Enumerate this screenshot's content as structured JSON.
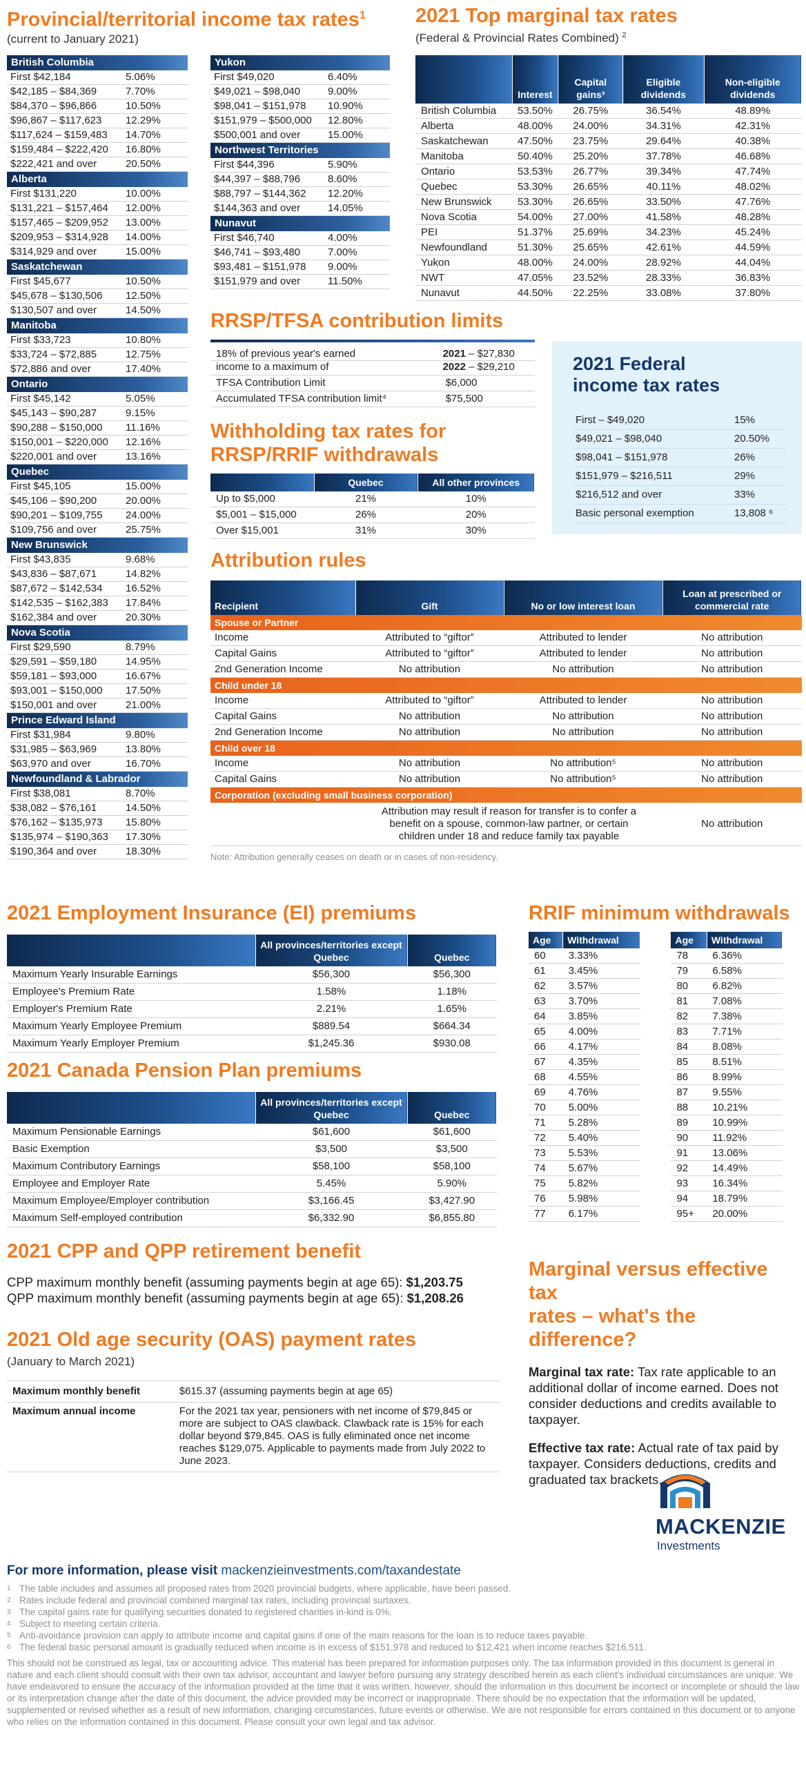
{
  "prov_section": {
    "title": "Provincial/territorial income tax rates",
    "title_sup": "1",
    "subtitle": "(current to January 2021)"
  },
  "prov_left": [
    {
      "name": "British Columbia",
      "rows": [
        [
          "First $42,184",
          "5.06%"
        ],
        [
          "$42,185 – $84,369",
          "7.70%"
        ],
        [
          "$84,370 – $96,866",
          "10.50%"
        ],
        [
          "$96,867 – $117,623",
          "12.29%"
        ],
        [
          "$117,624 – $159,483",
          "14.70%"
        ],
        [
          "$159,484 – $222,420",
          "16.80%"
        ],
        [
          "$222,421 and over",
          "20.50%"
        ]
      ]
    },
    {
      "name": "Alberta",
      "rows": [
        [
          "First $131,220",
          "10.00%"
        ],
        [
          "$131,221 – $157,464",
          "12.00%"
        ],
        [
          "$157,465 – $209,952",
          "13.00%"
        ],
        [
          "$209,953 – $314,928",
          "14.00%"
        ],
        [
          "$314,929 and over",
          "15.00%"
        ]
      ]
    },
    {
      "name": "Saskatchewan",
      "rows": [
        [
          "First $45,677",
          "10.50%"
        ],
        [
          "$45,678 – $130,506",
          "12.50%"
        ],
        [
          "$130,507 and over",
          "14.50%"
        ]
      ]
    },
    {
      "name": "Manitoba",
      "rows": [
        [
          "First $33,723",
          "10.80%"
        ],
        [
          "$33,724 – $72,885",
          "12.75%"
        ],
        [
          "$72,886 and over",
          "17.40%"
        ]
      ]
    },
    {
      "name": "Ontario",
      "rows": [
        [
          "First $45,142",
          "5.05%"
        ],
        [
          "$45,143 – $90,287",
          "9.15%"
        ],
        [
          "$90,288 – $150,000",
          "11.16%"
        ],
        [
          "$150,001 – $220,000",
          "12.16%"
        ],
        [
          "$220,001 and over",
          "13.16%"
        ]
      ]
    },
    {
      "name": "Quebec",
      "rows": [
        [
          "First $45,105",
          "15.00%"
        ],
        [
          "$45,106 – $90,200",
          "20.00%"
        ],
        [
          "$90,201 – $109,755",
          "24.00%"
        ],
        [
          "$109,756 and over",
          "25.75%"
        ]
      ]
    },
    {
      "name": "New Brunswick",
      "rows": [
        [
          "First $43,835",
          "9.68%"
        ],
        [
          "$43,836 – $87,671",
          "14.82%"
        ],
        [
          "$87,672 – $142,534",
          "16.52%"
        ],
        [
          "$142,535 – $162,383",
          "17.84%"
        ],
        [
          "$162,384 and over",
          "20.30%"
        ]
      ]
    },
    {
      "name": "Nova Scotia",
      "rows": [
        [
          "First $29,590",
          "8.79%"
        ],
        [
          "$29,591 – $59,180",
          "14.95%"
        ],
        [
          "$59,181 – $93,000",
          "16.67%"
        ],
        [
          "$93,001 – $150,000",
          "17.50%"
        ],
        [
          "$150,001 and over",
          "21.00%"
        ]
      ]
    },
    {
      "name": "Prince Edward Island",
      "rows": [
        [
          "First $31,984",
          "9.80%"
        ],
        [
          "$31,985 – $63,969",
          "13.80%"
        ],
        [
          "$63,970 and over",
          "16.70%"
        ]
      ]
    },
    {
      "name": "Newfoundland & Labrador",
      "rows": [
        [
          "First $38,081",
          "8.70%"
        ],
        [
          "$38,082 – $76,161",
          "14.50%"
        ],
        [
          "$76,162 – $135,973",
          "15.80%"
        ],
        [
          "$135,974 – $190,363",
          "17.30%"
        ],
        [
          "$190,364 and over",
          "18.30%"
        ]
      ]
    }
  ],
  "prov_right": [
    {
      "name": "Yukon",
      "rows": [
        [
          "First $49,020",
          "6.40%"
        ],
        [
          "$49,021 – $98,040",
          "9.00%"
        ],
        [
          "$98,041 – $151,978",
          "10.90%"
        ],
        [
          "$151,979 – $500,000",
          "12.80%"
        ],
        [
          "$500,001 and over",
          "15.00%"
        ]
      ]
    },
    {
      "name": "Northwest Territories",
      "rows": [
        [
          "First $44,396",
          "5.90%"
        ],
        [
          "$44,397 – $88,796",
          "8.60%"
        ],
        [
          "$88,797 – $144,362",
          "12.20%"
        ],
        [
          "$144,363 and over",
          "14.05%"
        ]
      ]
    },
    {
      "name": "Nunavut",
      "rows": [
        [
          "First $46,740",
          "4.00%"
        ],
        [
          "$46,741 – $93,480",
          "7.00%"
        ],
        [
          "$93,481 – $151,978",
          "9.00%"
        ],
        [
          "$151,979 and over",
          "11.50%"
        ]
      ]
    }
  ],
  "marginal": {
    "title": "2021 Top marginal tax rates",
    "subtitle": "(Federal & Provincial Rates Combined)",
    "subtitle_sup": "2",
    "headers": [
      "",
      "Interest",
      "Capital gains³",
      "Eligible dividends",
      "Non-eligible dividends"
    ],
    "rows": [
      [
        "British Columbia",
        "53.50%",
        "26.75%",
        "36.54%",
        "48.89%"
      ],
      [
        "Alberta",
        "48.00%",
        "24.00%",
        "34.31%",
        "42.31%"
      ],
      [
        "Saskatchewan",
        "47.50%",
        "23.75%",
        "29.64%",
        "40.38%"
      ],
      [
        "Manitoba",
        "50.40%",
        "25.20%",
        "37.78%",
        "46.68%"
      ],
      [
        "Ontario",
        "53.53%",
        "26.77%",
        "39.34%",
        "47.74%"
      ],
      [
        "Quebec",
        "53.30%",
        "26.65%",
        "40.11%",
        "48.02%"
      ],
      [
        "New Brunswick",
        "53.30%",
        "26.65%",
        "33.50%",
        "47.76%"
      ],
      [
        "Nova Scotia",
        "54.00%",
        "27.00%",
        "41.58%",
        "48.28%"
      ],
      [
        "PEI",
        "51.37%",
        "25.69%",
        "34.23%",
        "45.24%"
      ],
      [
        "Newfoundland",
        "51.30%",
        "25.65%",
        "42.61%",
        "44.59%"
      ],
      [
        "Yukon",
        "48.00%",
        "24.00%",
        "28.92%",
        "44.04%"
      ],
      [
        "NWT",
        "47.05%",
        "23.52%",
        "28.33%",
        "36.83%"
      ],
      [
        "Nunavut",
        "44.50%",
        "22.25%",
        "33.08%",
        "37.80%"
      ]
    ]
  },
  "rrsp": {
    "title": "RRSP/TFSA contribution limits",
    "line1": "18% of previous year's earned",
    "line2": "income to a maximum of",
    "y1": "2021",
    "v1": " – $27,830",
    "y2": "2022",
    "v2": " – $29,210",
    "tfsa_label": "TFSA Contribution Limit",
    "tfsa_value": "$6,000",
    "acc_label": "Accumulated TFSA contribution limit⁴",
    "acc_value": "$75,500"
  },
  "federal": {
    "title1": "2021 Federal",
    "title2": "income tax rates",
    "rows": [
      [
        "First – $49,020",
        "15%"
      ],
      [
        "$49,021 – $98,040",
        "20.50%"
      ],
      [
        "$98,041 – $151,978",
        "26%"
      ],
      [
        "$151,979 – $216,511",
        "29%"
      ],
      [
        "$216,512 and over",
        "33%"
      ],
      [
        "Basic personal exemption",
        "13,808 ⁶"
      ]
    ]
  },
  "withholding": {
    "title1": "Withholding tax rates for",
    "title2": "RRSP/RRIF withdrawals",
    "headers": [
      "",
      "Quebec",
      "All other provinces"
    ],
    "rows": [
      [
        "Up to $5,000",
        "21%",
        "10%"
      ],
      [
        "$5,001 – $15,000",
        "26%",
        "20%"
      ],
      [
        "Over $15,001",
        "31%",
        "30%"
      ]
    ]
  },
  "attribution": {
    "title": "Attribution rules",
    "headers": [
      "Recipient",
      "Gift",
      "No or low interest loan",
      "Loan at prescribed or commercial rate"
    ],
    "groups": [
      {
        "name": "Spouse or Partner",
        "rows": [
          [
            "Income",
            "Attributed to “giftor”",
            "Attributed to lender",
            "No attribution"
          ],
          [
            "Capital Gains",
            "Attributed to “giftor”",
            "Attributed to lender",
            "No attribution"
          ],
          [
            "2nd Generation Income",
            "No attribution",
            "No attribution",
            "No attribution"
          ]
        ]
      },
      {
        "name": "Child under 18",
        "rows": [
          [
            "Income",
            "Attributed to “giftor”",
            "Attributed to lender",
            "No attribution"
          ],
          [
            "Capital Gains",
            "No attribution",
            "No attribution",
            "No attribution"
          ],
          [
            "2nd Generation Income",
            "No attribution",
            "No attribution",
            "No attribution"
          ]
        ]
      },
      {
        "name": "Child over 18",
        "rows": [
          [
            "Income",
            "No attribution",
            "No attribution⁵",
            "No attribution"
          ],
          [
            "Capital Gains",
            "No attribution",
            "No attribution⁵",
            "No attribution"
          ]
        ]
      },
      {
        "name": "Corporation (excluding small business corporation)",
        "rows": []
      }
    ],
    "corp_text": "Attribution may result if reason for transfer is to confer a benefit on a spouse, common-law partner, or certain children under 18 and reduce family tax payable",
    "corp_value": "No attribution",
    "note": "Note: Attribution generally ceases on death or in cases of non-residency."
  },
  "ei": {
    "title": "2021 Employment Insurance (EI) premiums",
    "headers": [
      "",
      "All provinces/territories except Quebec",
      "Quebec"
    ],
    "rows": [
      [
        "Maximum Yearly Insurable Earnings",
        "$56,300",
        "$56,300"
      ],
      [
        "Employee's Premium Rate",
        "1.58%",
        "1.18%"
      ],
      [
        "Employer's Premium Rate",
        "2.21%",
        "1.65%"
      ],
      [
        "Maximum Yearly Employee Premium",
        "$889.54",
        "$664.34"
      ],
      [
        "Maximum Yearly Employer Premium",
        "$1,245.36",
        "$930.08"
      ]
    ]
  },
  "cpp": {
    "title": "2021 Canada Pension Plan premiums",
    "headers": [
      "",
      "All provinces/territories except Quebec",
      "Quebec"
    ],
    "rows": [
      [
        "Maximum Pensionable Earnings",
        "$61,600",
        "$61,600"
      ],
      [
        "Basic Exemption",
        "$3,500",
        "$3,500"
      ],
      [
        "Maximum Contributory Earnings",
        "$58,100",
        "$58,100"
      ],
      [
        "Employee and Employer Rate",
        "5.45%",
        "5.90%"
      ],
      [
        "Maximum Employee/Employer contribution",
        "$3,166.45",
        "$3,427.90"
      ],
      [
        "Maximum Self-employed contribution",
        "$6,332.90",
        "$6,855.80"
      ]
    ]
  },
  "rrif": {
    "title": "RRIF minimum withdrawals",
    "headers": [
      "Age",
      "Withdrawal"
    ],
    "left": [
      [
        "60",
        "3.33%"
      ],
      [
        "61",
        "3.45%"
      ],
      [
        "62",
        "3.57%"
      ],
      [
        "63",
        "3.70%"
      ],
      [
        "64",
        "3.85%"
      ],
      [
        "65",
        "4.00%"
      ],
      [
        "66",
        "4.17%"
      ],
      [
        "67",
        "4.35%"
      ],
      [
        "68",
        "4.55%"
      ],
      [
        "69",
        "4.76%"
      ],
      [
        "70",
        "5.00%"
      ],
      [
        "71",
        "5.28%"
      ],
      [
        "72",
        "5.40%"
      ],
      [
        "73",
        "5.53%"
      ],
      [
        "74",
        "5.67%"
      ],
      [
        "75",
        "5.82%"
      ],
      [
        "76",
        "5.98%"
      ],
      [
        "77",
        "6.17%"
      ]
    ],
    "right": [
      [
        "78",
        "6.36%"
      ],
      [
        "79",
        "6.58%"
      ],
      [
        "80",
        "6.82%"
      ],
      [
        "81",
        "7.08%"
      ],
      [
        "82",
        "7.38%"
      ],
      [
        "83",
        "7.71%"
      ],
      [
        "84",
        "8.08%"
      ],
      [
        "85",
        "8.51%"
      ],
      [
        "86",
        "8.99%"
      ],
      [
        "87",
        "9.55%"
      ],
      [
        "88",
        "10.21%"
      ],
      [
        "89",
        "10.99%"
      ],
      [
        "90",
        "11.92%"
      ],
      [
        "91",
        "13.06%"
      ],
      [
        "92",
        "14.49%"
      ],
      [
        "93",
        "16.34%"
      ],
      [
        "94",
        "18.79%"
      ],
      [
        "95+",
        "20.00%"
      ]
    ]
  },
  "retirement": {
    "title": "2021 CPP and QPP retirement benefit",
    "cpp_label": "CPP maximum monthly benefit (assuming payments begin at age 65): ",
    "cpp_value": "$1,203.75",
    "qpp_label": "QPP maximum monthly benefit (assuming payments begin at age 65): ",
    "qpp_value": "$1,208.26"
  },
  "oas": {
    "title": "2021 Old age security (OAS) payment rates",
    "subtitle": "(January to March 2021)",
    "r1_label": "Maximum monthly benefit",
    "r1_value": "$615.37 (assuming payments begin at age 65)",
    "r2_label": "Maximum annual income",
    "r2_value": "For the 2021 tax year, pensioners with net income of $79,845 or more are subject to OAS clawback. Clawback rate is 15% for each dollar beyond $79,845. OAS is fully eliminated once net income reaches $129,075. Applicable to payments made from July 2022 to June 2023."
  },
  "mve": {
    "title1": "Marginal versus effective tax",
    "title2": "rates – what's the difference?",
    "m_label": "Marginal tax rate:",
    "m_text": " Tax rate applicable to an additional dollar of income earned. Does not consider deductions and credits available to taxpayer.",
    "e_label": "Effective tax rate:",
    "e_text": " Actual rate of tax paid by taxpayer. Considers deductions, credits and graduated tax brackets."
  },
  "logo": {
    "name": "MACKENZIE",
    "tag": "Investments"
  },
  "more": {
    "label": "For more information, please visit ",
    "url": "mackenzieinvestments.com/taxandestate"
  },
  "footnotes": [
    [
      "1",
      "The table includes and assumes all proposed rates from 2020 provincial budgets, where applicable, have been passed."
    ],
    [
      "2",
      "Rates include federal and provincial combined marginal tax rates, including provincial surtaxes."
    ],
    [
      "3",
      "The capital gains rate for qualifying securities donated to registered charities in-kind is 0%."
    ],
    [
      "4",
      "Subject to meeting certain criteria."
    ],
    [
      "5",
      "Anti-avoidance provision can apply to attribute income and capital gains if one of the main reasons for the loan is to reduce taxes payable."
    ],
    [
      "6",
      "The federal basic personal amount is gradually reduced when income is in excess of $151,978 and reduced to $12,421 when income reaches $216,511."
    ]
  ],
  "disclaimer": "This should not be construed as legal, tax or accounting advice. This material has been prepared for information purposes only. The tax information provided in this document is general in nature and each client should consult with their own tax advisor, accountant and lawyer before pursuing any strategy described herein as each client's individual circumstances are unique. We have endeavored to ensure the accuracy of the information provided at the time that it was written, however, should the information in this document be incorrect or incomplete or should the law or its interpretation change after the date of this document, the advice provided may be incorrect or inappropriate. There should be no expectation that the information will be updated, supplemented or revised whether as a result of new information, changing circumstances, future events or otherwise. We are not responsible for errors contained in this document or to anyone who relies on the information contained in this document. Please consult your own legal and tax advisor."
}
